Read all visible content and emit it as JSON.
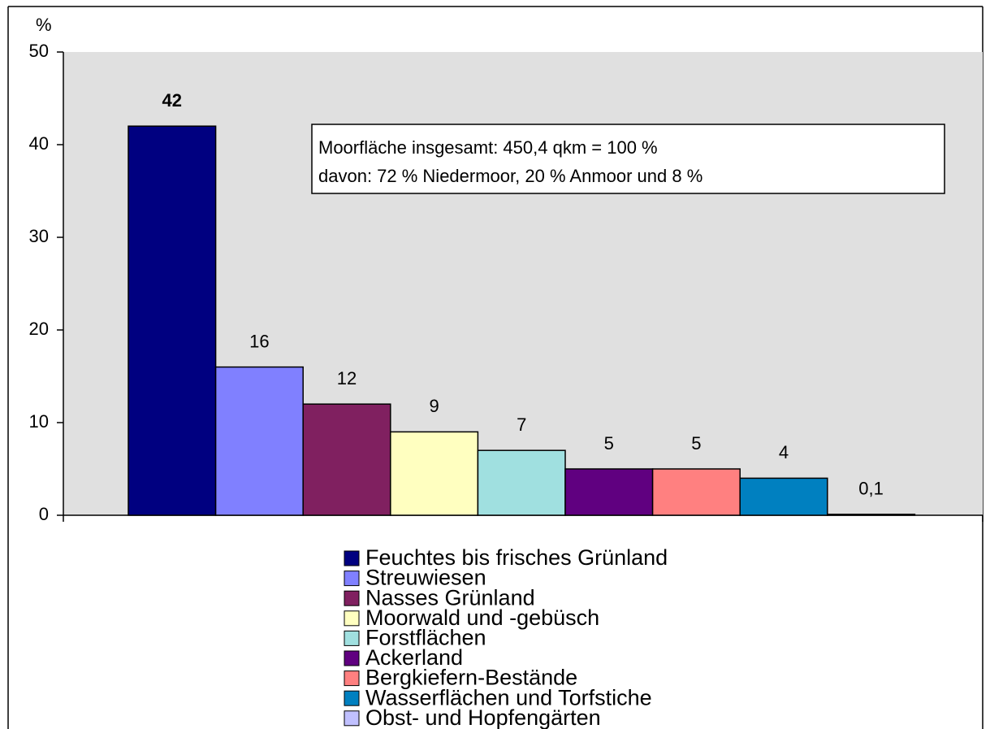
{
  "chart_data": {
    "type": "bar",
    "y_label": "%",
    "annotation": [
      "Moorfläche insgesamt: 450,4 qkm = 100 %",
      "davon: 72 % Niedermoor, 20 % Anmoor und 8 %"
    ],
    "series": [
      {
        "name": "Feuchtes bis frisches Grünland",
        "color": "#000080",
        "values": [
          42
        ]
      },
      {
        "name": "Streuwiesen",
        "color": "#8080ff",
        "values": [
          16
        ]
      },
      {
        "name": "Nasses Grünland",
        "color": "#802060",
        "values": [
          12
        ]
      },
      {
        "name": "Moorwald und -gebüsch",
        "color": "#ffffc0",
        "values": [
          9
        ]
      },
      {
        "name": "Forstflächen",
        "color": "#a0e0e0",
        "values": [
          7
        ]
      },
      {
        "name": "Ackerland",
        "color": "#600080",
        "values": [
          5
        ]
      },
      {
        "name": "Bergkiefern-Bestände",
        "color": "#ff8080",
        "values": [
          5
        ]
      },
      {
        "name": "Wasserflächen und Torfstiche",
        "color": "#0080c0",
        "values": [
          4
        ]
      },
      {
        "name": "Obst- und Hopfengärten",
        "color": "#c0c0ff",
        "values": [
          0.1
        ],
        "value_labels": [
          "0,1"
        ]
      }
    ],
    "ylim": [
      0,
      50
    ],
    "yticks": [
      0,
      10,
      20,
      30,
      40,
      50
    ]
  }
}
